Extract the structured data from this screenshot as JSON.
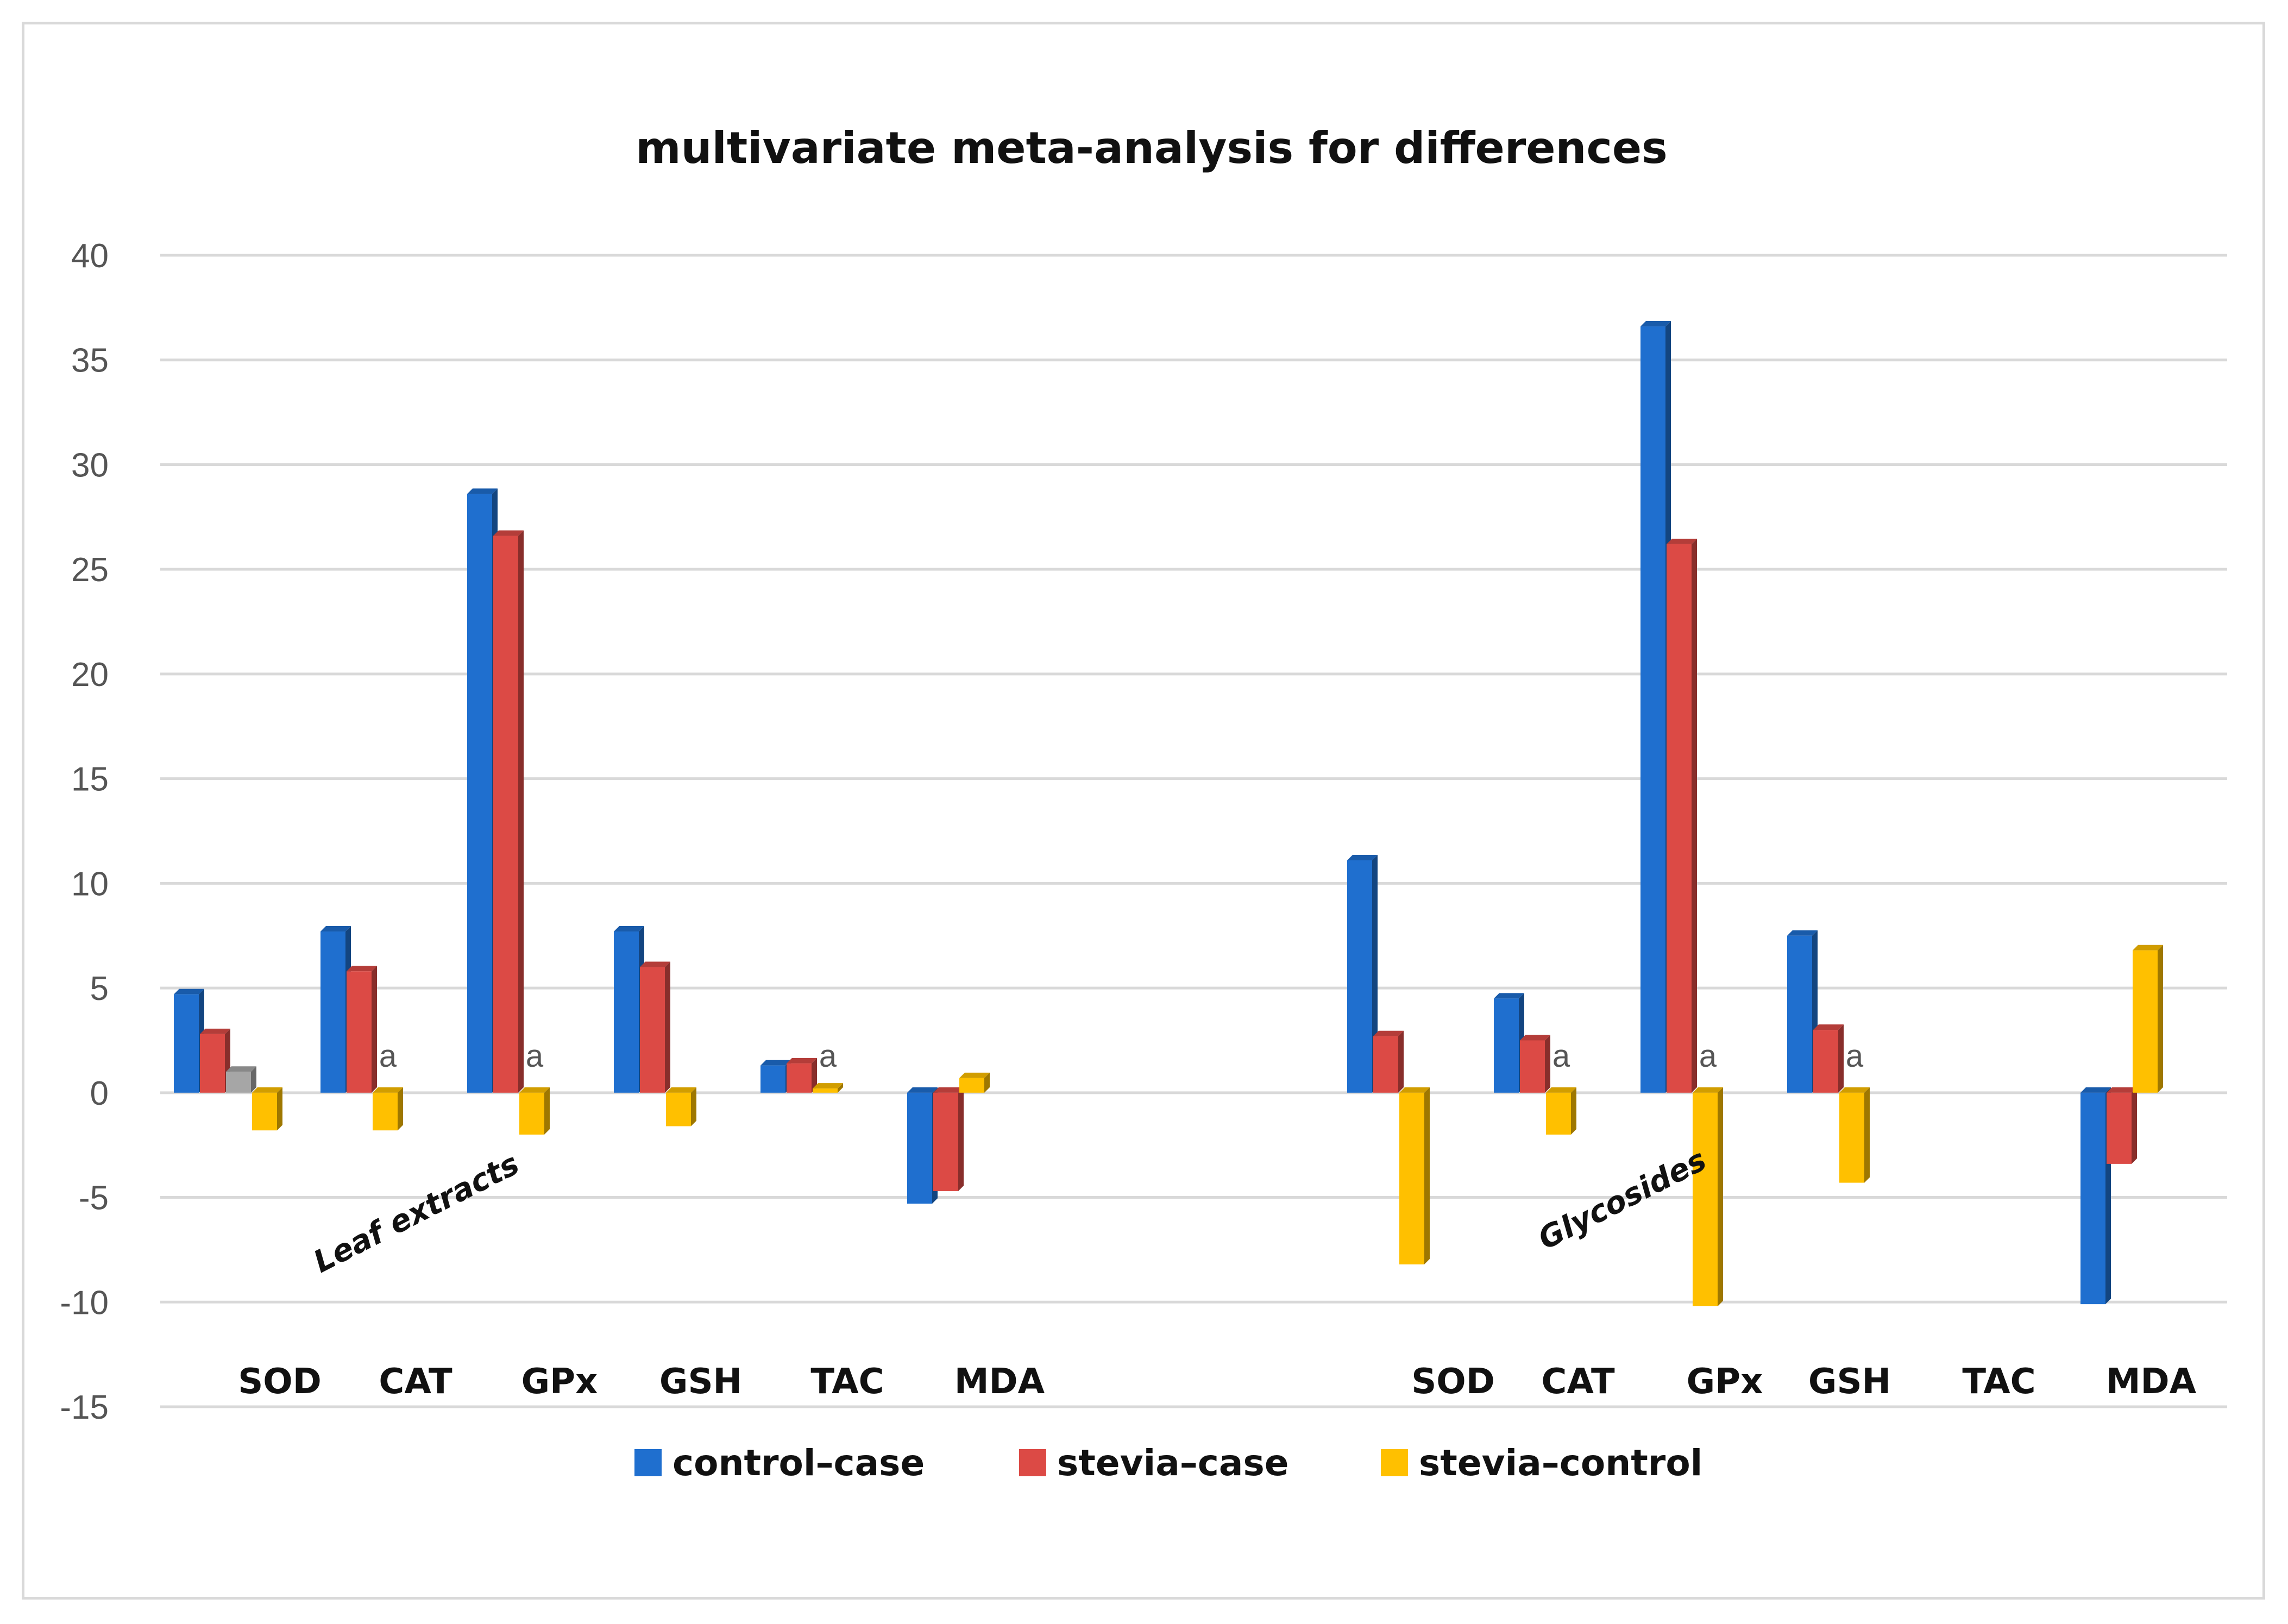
{
  "chart_data": {
    "type": "bar",
    "title": "multivariate meta-analysis for differences",
    "xlabel": "",
    "ylabel": "",
    "ylim": [
      -15,
      40
    ],
    "yticks": [
      40,
      35,
      30,
      25,
      20,
      15,
      10,
      5,
      0,
      -5,
      -10,
      -15
    ],
    "grid": true,
    "legend_position": "bottom",
    "groups": [
      "Leaf extracts",
      "Glycosides"
    ],
    "categories": [
      "SOD",
      "CAT",
      "GPx",
      "GSH",
      "TAC",
      "MDA"
    ],
    "series": [
      {
        "name": "control–case",
        "color": "#1f6fcf",
        "values": [
          [
            4.7,
            7.7,
            28.6,
            7.7,
            1.3,
            -5.3
          ],
          [
            11.1,
            4.5,
            36.6,
            7.5,
            null,
            -10.1
          ]
        ]
      },
      {
        "name": "stevia–case",
        "color": "#dc4a45",
        "values": [
          [
            2.8,
            5.8,
            26.6,
            6.0,
            1.4,
            -4.7
          ],
          [
            2.7,
            2.5,
            26.2,
            3.0,
            null,
            -3.4
          ]
        ]
      },
      {
        "name": "stevia–control",
        "color": "#ffc000",
        "values": [
          [
            -1.8,
            -1.8,
            -2.0,
            -1.6,
            0.2,
            0.7
          ],
          [
            -8.2,
            -2.0,
            -10.2,
            -4.3,
            null,
            6.8
          ]
        ]
      }
    ],
    "extra_bars": [
      {
        "group": "Leaf extracts",
        "category": "SOD",
        "value": 1.0,
        "color": "#a6a6a6"
      }
    ],
    "annotations": [
      {
        "group": "Leaf extracts",
        "category": "CAT",
        "text": "a"
      },
      {
        "group": "Leaf extracts",
        "category": "GPx",
        "text": "a"
      },
      {
        "group": "Leaf extracts",
        "category": "TAC",
        "text": "a"
      },
      {
        "group": "Glycosides",
        "category": "CAT",
        "text": "a"
      },
      {
        "group": "Glycosides",
        "category": "GPx",
        "text": "a"
      },
      {
        "group": "Glycosides",
        "category": "GSH",
        "text": "a"
      }
    ]
  }
}
